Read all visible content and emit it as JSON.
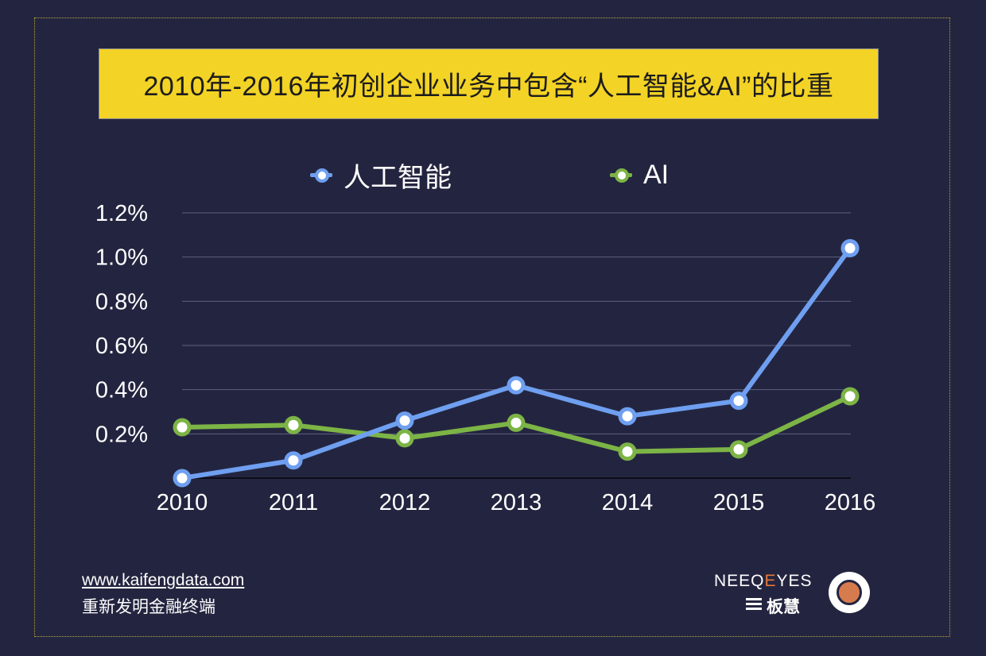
{
  "title": "2010年-2016年初创企业业务中包含“人工智能&AI”的比重",
  "legend": {
    "series1": "人工智能",
    "series2": "AI"
  },
  "colors": {
    "background": "#232540",
    "title_bg": "#f3d325",
    "series1": "#6f9ff0",
    "series2": "#7db446",
    "grid": "#5e6080"
  },
  "footer": {
    "url": "www.kaifengdata.com",
    "slogan": "重新发明金融终端"
  },
  "logo": {
    "brand_prefix": "NEEQ",
    "brand_e": "E",
    "brand_suffix": "YES",
    "sub": "板慧"
  },
  "chart_data": {
    "type": "line",
    "title": "2010年-2016年初创企业业务中包含“人工智能&AI”的比重",
    "xlabel": "",
    "ylabel": "",
    "x": [
      "2010",
      "2011",
      "2012",
      "2013",
      "2014",
      "2015",
      "2016"
    ],
    "ylim": [
      0.0,
      1.2
    ],
    "yticks": [
      "0.2%",
      "0.4%",
      "0.6%",
      "0.8%",
      "1.0%",
      "1.2%"
    ],
    "grid": true,
    "legend_position": "top-center",
    "series": [
      {
        "name": "人工智能",
        "values": [
          0.0,
          0.08,
          0.26,
          0.42,
          0.28,
          0.35,
          1.04
        ]
      },
      {
        "name": "AI",
        "values": [
          0.23,
          0.24,
          0.18,
          0.25,
          0.12,
          0.13,
          0.37
        ]
      }
    ]
  }
}
